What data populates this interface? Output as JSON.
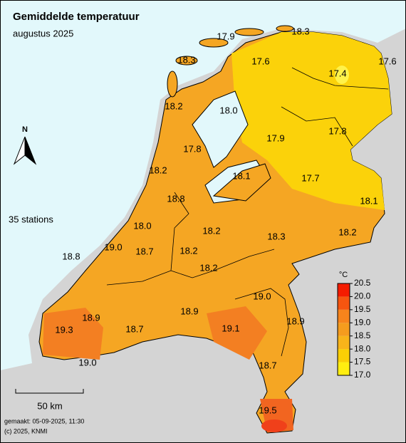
{
  "title": "Gemiddelde temperatuur",
  "subtitle": "augustus 2025",
  "stations_note": "35 stations",
  "north": "N",
  "scale_label": "50 km",
  "footer": [
    "gemaakt: 05-09-2025, 11:30",
    "(c) 2025, KNMI"
  ],
  "legend": {
    "unit": "°C",
    "ticks": [
      "20.5",
      "20.0",
      "19.5",
      "19.0",
      "18.5",
      "18.0",
      "17.5",
      "17.0"
    ],
    "colors": [
      "#f41c00",
      "#f65510",
      "#f7841c",
      "#f59c1e",
      "#f8b41a",
      "#fbcf05",
      "#ffee10"
    ]
  },
  "labels": [
    "17.9",
    "18.3",
    "17.6",
    "17.4",
    "17.6",
    "18.3",
    "18.2",
    "18.0",
    "17.9",
    "17.8",
    "17.8",
    "18.2",
    "18.1",
    "17.7",
    "18.1",
    "18.8",
    "18.0",
    "18.2",
    "18.3",
    "18.2",
    "19.0",
    "18.8",
    "18.7",
    "18.2",
    "18.2",
    "19.0",
    "18.9",
    "18.9",
    "18.9",
    "19.1",
    "19.3",
    "18.7",
    "18.7",
    "19.0",
    "19.5"
  ]
}
